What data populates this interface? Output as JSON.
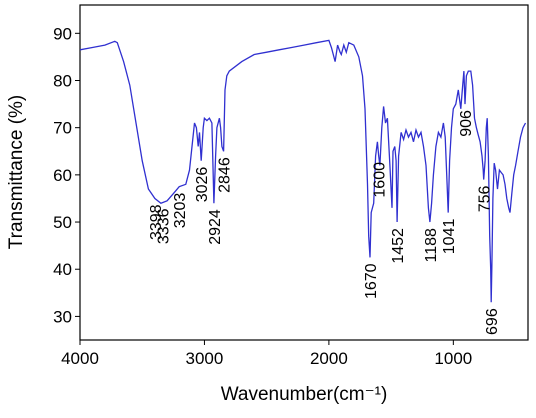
{
  "chart_data": {
    "type": "line",
    "x_label": "Wavenumber(cm⁻¹)",
    "y_label": "Transmittance (%)",
    "xlim": [
      4000,
      400
    ],
    "xticks": [
      4000,
      3000,
      2000,
      1000
    ],
    "ylim": [
      25,
      96
    ],
    "yticks": [
      30,
      40,
      50,
      60,
      70,
      80,
      90
    ],
    "series": [
      {
        "color": "#3030d0",
        "x": [
          4000,
          3900,
          3800,
          3720,
          3700,
          3650,
          3600,
          3550,
          3500,
          3450,
          3398,
          3350,
          3300,
          3250,
          3203,
          3150,
          3120,
          3100,
          3080,
          3065,
          3050,
          3040,
          3026,
          3010,
          3000,
          2980,
          2960,
          2940,
          2924,
          2910,
          2900,
          2880,
          2870,
          2860,
          2846,
          2835,
          2820,
          2800,
          2700,
          2600,
          2500,
          2400,
          2300,
          2200,
          2100,
          2000,
          1980,
          1960,
          1950,
          1930,
          1910,
          1900,
          1880,
          1860,
          1840,
          1800,
          1760,
          1730,
          1710,
          1690,
          1680,
          1670,
          1660,
          1640,
          1625,
          1610,
          1600,
          1590,
          1575,
          1560,
          1545,
          1530,
          1510,
          1493,
          1485,
          1470,
          1460,
          1452,
          1440,
          1420,
          1400,
          1380,
          1360,
          1340,
          1320,
          1300,
          1280,
          1260,
          1240,
          1220,
          1200,
          1188,
          1175,
          1160,
          1140,
          1120,
          1100,
          1080,
          1065,
          1050,
          1041,
          1030,
          1015,
          1000,
          980,
          960,
          940,
          925,
          915,
          906,
          895,
          880,
          860,
          845,
          830,
          815,
          800,
          785,
          770,
          760,
          756,
          745,
          735,
          728,
          718,
          708,
          700,
          696,
          690,
          682,
          672,
          660,
          645,
          630,
          615,
          600,
          585,
          570,
          555,
          545,
          530,
          515,
          500,
          480,
          460,
          440,
          420
        ],
        "values": [
          86.5,
          87,
          87.5,
          88.3,
          88,
          84,
          79,
          71,
          63,
          57,
          55,
          54,
          54.5,
          56,
          57.5,
          58,
          61,
          66,
          71,
          70,
          66,
          69,
          63,
          70,
          72,
          71.5,
          72,
          71,
          54,
          64,
          70,
          72,
          70,
          66,
          65,
          78,
          81,
          82,
          84,
          85.5,
          86,
          86.5,
          87,
          87.5,
          88,
          88.5,
          87,
          85,
          84,
          87.5,
          86,
          85.5,
          87.5,
          86,
          88,
          87.5,
          85,
          81,
          74,
          58,
          47,
          42.5,
          52,
          54,
          64,
          67,
          64,
          62,
          70,
          74.5,
          71,
          72,
          62,
          53,
          65,
          66,
          63,
          50,
          64,
          69,
          67.5,
          69.5,
          68,
          69,
          67,
          69.5,
          68,
          69,
          66,
          62,
          53,
          50,
          54,
          60,
          66,
          69,
          68,
          71,
          68,
          58,
          52,
          63,
          70,
          74,
          75,
          78,
          74,
          79,
          82,
          75,
          81,
          82,
          82,
          79,
          72,
          70,
          68.5,
          67,
          64,
          61,
          59,
          63,
          70,
          72,
          64,
          47,
          40,
          33,
          41,
          55,
          62.5,
          61,
          57,
          61,
          60.5,
          60,
          58,
          55,
          53,
          52,
          56,
          60,
          62,
          65,
          68,
          70,
          71
        ]
      }
    ],
    "peaks": [
      3398,
      3336,
      3203,
      3026,
      2924,
      2846,
      1670,
      1600,
      1452,
      1188,
      1041,
      906,
      756,
      696
    ]
  }
}
